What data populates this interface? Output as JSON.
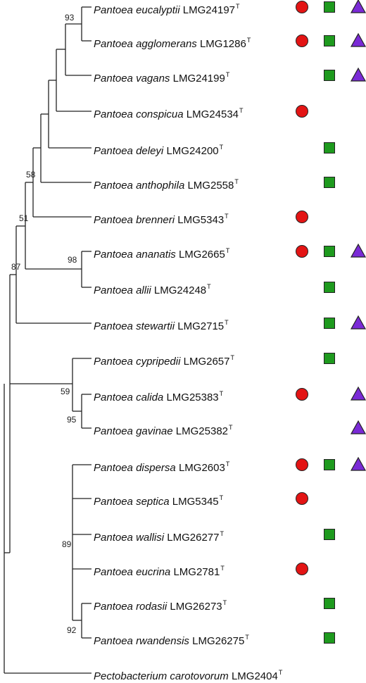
{
  "taxa": [
    {
      "genus": "Pantoea",
      "species": "eucalyptii",
      "strain": "LMG24197",
      "sup": "T",
      "circle": true,
      "square": true,
      "triangle": true
    },
    {
      "genus": "Pantoea",
      "species": "agglomerans",
      "strain": "LMG1286",
      "sup": "T",
      "circle": true,
      "square": true,
      "triangle": true
    },
    {
      "genus": "Pantoea",
      "species": "vagans",
      "strain": "LMG24199",
      "sup": "T",
      "circle": false,
      "square": true,
      "triangle": true
    },
    {
      "genus": "Pantoea",
      "species": "conspicua",
      "strain": "LMG24534",
      "sup": "T",
      "circle": true,
      "square": false,
      "triangle": false
    },
    {
      "genus": "Pantoea",
      "species": "deleyi",
      "strain": "LMG24200",
      "sup": "T",
      "circle": false,
      "square": true,
      "triangle": false
    },
    {
      "genus": "Pantoea",
      "species": "anthophila",
      "strain": "LMG2558",
      "sup": "T",
      "circle": false,
      "square": true,
      "triangle": false
    },
    {
      "genus": "Pantoea",
      "species": "brenneri",
      "strain": "LMG5343",
      "sup": "T",
      "circle": true,
      "square": false,
      "triangle": false
    },
    {
      "genus": "Pantoea",
      "species": "ananatis",
      "strain": "LMG2665",
      "sup": "T",
      "circle": true,
      "square": true,
      "triangle": true
    },
    {
      "genus": "Pantoea",
      "species": "allii",
      "strain": "LMG24248",
      "sup": "T",
      "circle": false,
      "square": true,
      "triangle": false
    },
    {
      "genus": "Pantoea",
      "species": "stewartii",
      "strain": "LMG2715",
      "sup": "T",
      "circle": false,
      "square": true,
      "triangle": true
    },
    {
      "genus": "Pantoea",
      "species": "cypripedii",
      "strain": "LMG2657",
      "sup": "T",
      "circle": false,
      "square": true,
      "triangle": false
    },
    {
      "genus": "Pantoea",
      "species": "calida",
      "strain": "LMG25383",
      "sup": "T",
      "circle": true,
      "square": false,
      "triangle": true
    },
    {
      "genus": "Pantoea",
      "species": "gavinae",
      "strain": "LMG25382",
      "sup": "T",
      "circle": false,
      "square": false,
      "triangle": true
    },
    {
      "genus": "Pantoea",
      "species": "dispersa",
      "strain": "LMG2603",
      "sup": "T",
      "circle": true,
      "square": true,
      "triangle": true
    },
    {
      "genus": "Pantoea",
      "species": "septica",
      "strain": "LMG5345",
      "sup": "T",
      "circle": true,
      "square": false,
      "triangle": false
    },
    {
      "genus": "Pantoea",
      "species": "wallisi",
      "strain": "LMG26277",
      "sup": "T",
      "circle": false,
      "square": true,
      "triangle": false
    },
    {
      "genus": "Pantoea",
      "species": "eucrina",
      "strain": "LMG2781",
      "sup": "T",
      "circle": true,
      "square": false,
      "triangle": false
    },
    {
      "genus": "Pantoea",
      "species": "rodasii",
      "strain": "LMG26273",
      "sup": "T",
      "circle": false,
      "square": true,
      "triangle": false
    },
    {
      "genus": "Pantoea",
      "species": "rwandensis",
      "strain": "LMG26275",
      "sup": "T",
      "circle": false,
      "square": true,
      "triangle": false
    },
    {
      "genus": "Pectobacterium",
      "species": "carotovorum",
      "strain": "LMG2404",
      "sup": "T",
      "circle": false,
      "square": false,
      "triangle": false
    }
  ],
  "bootstrap": [
    "93",
    "58",
    "51",
    "87",
    "98",
    "59",
    "95",
    "89",
    "92"
  ],
  "colors": {
    "circle": "#e31414",
    "square": "#1e9a1e",
    "triangle": "#7a2ad6",
    "line": "#222222"
  }
}
